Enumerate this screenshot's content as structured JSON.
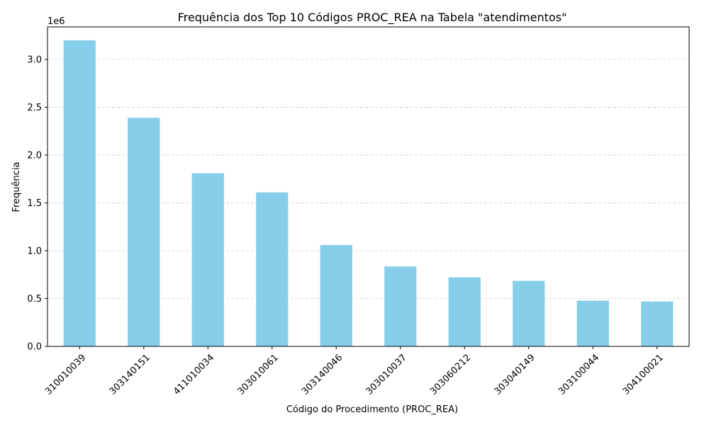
{
  "chart_data": {
    "type": "bar",
    "title": "Frequência dos Top 10 Códigos PROC_REA na Tabela \"atendimentos\"",
    "xlabel": "Código do Procedimento (PROC_REA)",
    "ylabel": "Frequência",
    "y_offset_label": "1e6",
    "y_scale": 1000000,
    "categories": [
      "310010039",
      "303140151",
      "411010034",
      "303010061",
      "303140046",
      "303010037",
      "303060212",
      "303040149",
      "303100044",
      "304100021"
    ],
    "values": [
      3200000,
      2390000,
      1810000,
      1610000,
      1060000,
      835000,
      722000,
      685000,
      478000,
      470000
    ],
    "ylim": [
      0,
      3340000
    ],
    "yticks": [
      0,
      500000,
      1000000,
      1500000,
      2000000,
      2500000,
      3000000
    ],
    "ytick_labels": [
      "0.0",
      "0.5",
      "1.0",
      "1.5",
      "2.0",
      "2.5",
      "3.0"
    ],
    "grid": "y-dashed",
    "bar_color": "#87ceeb",
    "legend": "none"
  }
}
